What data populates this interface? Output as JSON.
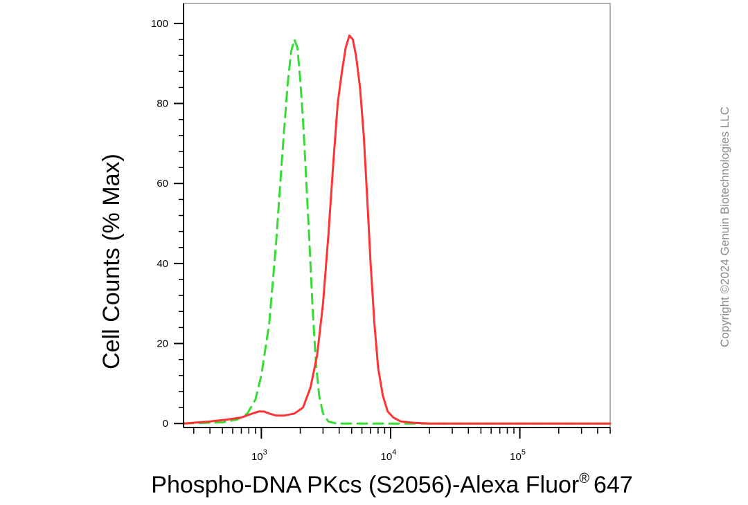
{
  "chart_data": {
    "type": "line",
    "title": "",
    "xlabel": "Phospho-DNA PKcs (S2056)-Alexa Fluor",
    "xlabel_superscript": "®",
    "xlabel_suffix": "647",
    "ylabel": "Cell Counts (% Max)",
    "x_scale": "log",
    "xlim": [
      250,
      500000
    ],
    "ylim": [
      -1,
      105
    ],
    "x_major_ticks": [
      1000,
      10000,
      100000
    ],
    "x_major_tick_labels": [
      {
        "base": "10",
        "exp": "3"
      },
      {
        "base": "10",
        "exp": "4"
      },
      {
        "base": "10",
        "exp": "5"
      }
    ],
    "y_ticks": [
      0,
      20,
      40,
      60,
      80,
      100
    ],
    "y_tick_labels": [
      "0",
      "20",
      "40",
      "60",
      "80",
      "100"
    ],
    "grid": false,
    "legend": "none",
    "series": [
      {
        "color": "#33dd33",
        "style": "dashed",
        "x": [
          250,
          500,
          650,
          780,
          900,
          1000,
          1150,
          1300,
          1450,
          1600,
          1700,
          1800,
          1900,
          2000,
          2100,
          2200,
          2350,
          2500,
          2650,
          2800,
          3000,
          3300,
          3800,
          5000,
          10000,
          100000,
          500000
        ],
        "y": [
          0,
          0.3,
          1,
          2.5,
          6,
          12,
          25,
          45,
          67,
          85,
          93,
          96,
          94,
          86,
          76,
          64,
          46,
          28,
          15,
          7,
          2.5,
          0.5,
          0,
          0,
          0,
          0,
          0
        ]
      },
      {
        "color": "#ff3333",
        "style": "solid",
        "x": [
          250,
          400,
          550,
          700,
          850,
          950,
          1050,
          1150,
          1300,
          1500,
          1800,
          2100,
          2400,
          2700,
          3000,
          3300,
          3600,
          3900,
          4200,
          4500,
          4800,
          5100,
          5400,
          5800,
          6200,
          6600,
          7000,
          7500,
          8000,
          8700,
          9500,
          10500,
          12000,
          15000,
          20000,
          50000,
          100000,
          200000,
          500000
        ],
        "y": [
          0,
          0.5,
          1,
          1.5,
          2.5,
          3,
          3,
          2.5,
          2,
          2,
          2.5,
          4,
          9,
          17,
          30,
          47,
          65,
          80,
          88,
          94,
          97,
          96,
          92,
          84,
          72,
          56,
          40,
          25,
          14,
          7,
          3,
          1.5,
          0.5,
          0.2,
          0,
          0,
          0,
          0,
          0
        ]
      }
    ]
  },
  "watermark": "Copyright ©2024 Genuin Biotechnologies LLC"
}
